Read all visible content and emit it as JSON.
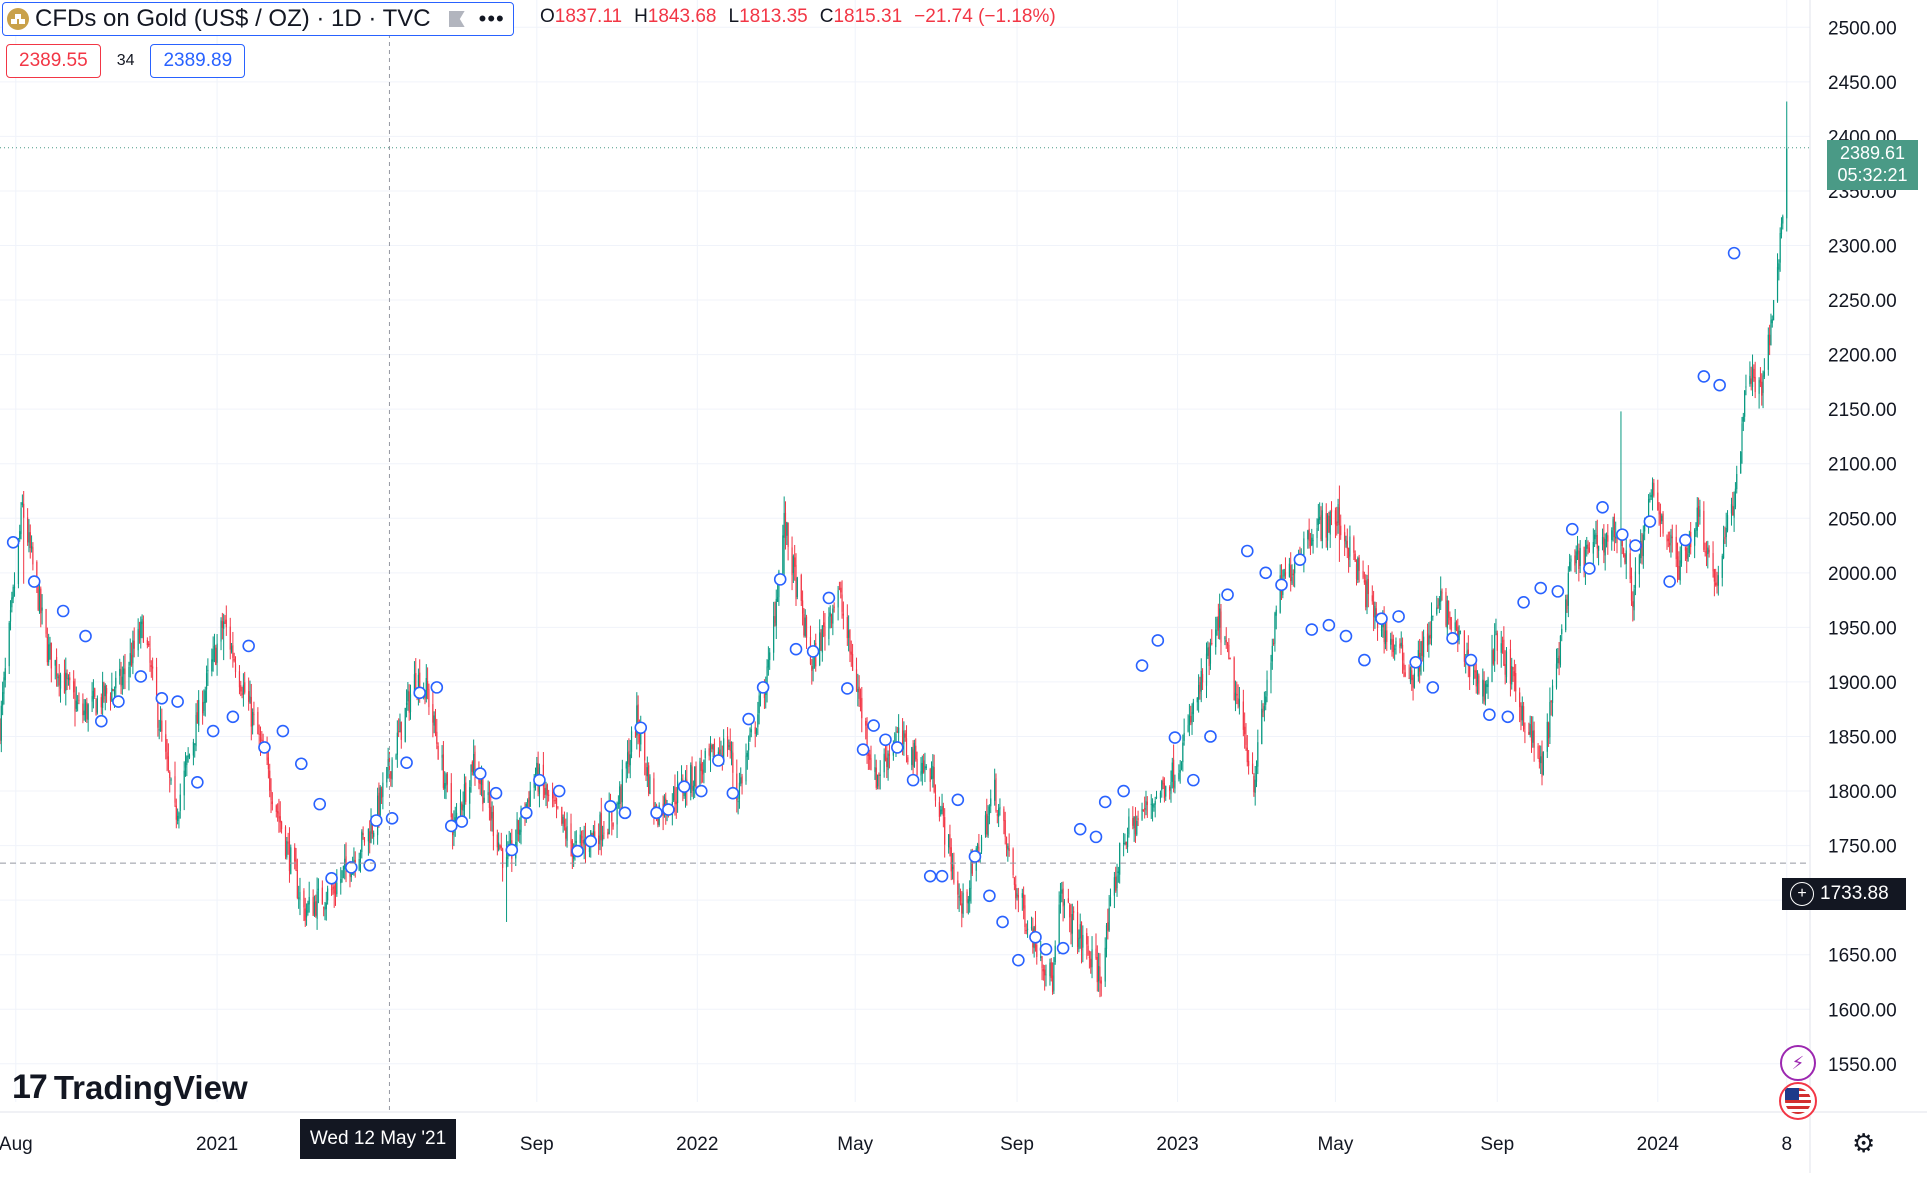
{
  "header": {
    "symbol_title": "CFDs on Gold (US$ / OZ) · 1D · TVC",
    "ohlc": {
      "o_label": "O",
      "o": "1837.11",
      "h_label": "H",
      "h": "1843.68",
      "l_label": "L",
      "l": "1813.35",
      "c_label": "C",
      "c": "1815.31",
      "change": "−21.74 (−1.18%)"
    },
    "icons": {
      "symbol": "gold-bars-icon",
      "flag": "flag-icon",
      "more": "more-dots-icon"
    }
  },
  "quote": {
    "sell": "2389.55",
    "spread": "34",
    "buy": "2389.89"
  },
  "crosshair": {
    "date_label": "Wed 12 May '21",
    "price_label": "1733.88",
    "price": 1733.88
  },
  "last_price": {
    "price": "2389.61",
    "countdown": "05:32:21",
    "value": 2389.61
  },
  "branding": {
    "logo_mark": "17",
    "logo_text": "TradingView"
  },
  "side_icons": {
    "lightning": "lightning-icon",
    "flag": "us-flag-icon",
    "settings": "gear-icon"
  },
  "colors": {
    "up": "#089981",
    "down": "#f23645",
    "last": "#4a9a86",
    "event": "#2962ff",
    "grid": "#f0f3fa"
  },
  "chart_data": {
    "type": "candlestick",
    "series_name": "CFDs on Gold (US$ / OZ)",
    "ylim": [
      1515,
      2525
    ],
    "y_ticks": [
      1550,
      1600,
      1650,
      1700,
      1750,
      1800,
      1850,
      1900,
      1950,
      2000,
      2050,
      2100,
      2150,
      2200,
      2250,
      2300,
      2350,
      2400,
      2450,
      2500
    ],
    "x_ticks": [
      {
        "date": "2020-08-01",
        "label": "Aug"
      },
      {
        "date": "2021-01-01",
        "label": "2021"
      },
      {
        "date": "2021-09-01",
        "label": "Sep"
      },
      {
        "date": "2022-01-01",
        "label": "2022"
      },
      {
        "date": "2022-05-01",
        "label": "May"
      },
      {
        "date": "2022-09-01",
        "label": "Sep"
      },
      {
        "date": "2023-01-01",
        "label": "2023"
      },
      {
        "date": "2023-05-01",
        "label": "May"
      },
      {
        "date": "2023-09-01",
        "label": "Sep"
      },
      {
        "date": "2024-01-01",
        "label": "2024"
      },
      {
        "date": "2024-04-08",
        "label": "8"
      }
    ],
    "xlim": [
      "2020-07-20",
      "2024-04-12"
    ],
    "trend": [
      [
        "2020-07-20",
        1860
      ],
      [
        "2020-08-06",
        2060
      ],
      [
        "2020-08-25",
        1930
      ],
      [
        "2020-09-20",
        1870
      ],
      [
        "2020-10-20",
        1900
      ],
      [
        "2020-11-06",
        1950
      ],
      [
        "2020-11-30",
        1777
      ],
      [
        "2020-12-20",
        1880
      ],
      [
        "2021-01-06",
        1955
      ],
      [
        "2021-02-01",
        1850
      ],
      [
        "2021-03-08",
        1690
      ],
      [
        "2021-03-31",
        1710
      ],
      [
        "2021-04-30",
        1770
      ],
      [
        "2021-06-01",
        1905
      ],
      [
        "2021-06-10",
        1890
      ],
      [
        "2021-06-30",
        1765
      ],
      [
        "2021-07-15",
        1830
      ],
      [
        "2021-08-09",
        1730
      ],
      [
        "2021-08-31",
        1815
      ],
      [
        "2021-09-30",
        1745
      ],
      [
        "2021-10-31",
        1780
      ],
      [
        "2021-11-16",
        1865
      ],
      [
        "2021-11-30",
        1780
      ],
      [
        "2021-12-31",
        1815
      ],
      [
        "2022-01-25",
        1845
      ],
      [
        "2022-01-31",
        1795
      ],
      [
        "2022-02-24",
        1910
      ],
      [
        "2022-03-08",
        2045
      ],
      [
        "2022-03-29",
        1915
      ],
      [
        "2022-04-18",
        1985
      ],
      [
        "2022-05-16",
        1810
      ],
      [
        "2022-06-01",
        1850
      ],
      [
        "2022-06-30",
        1810
      ],
      [
        "2022-07-21",
        1690
      ],
      [
        "2022-08-15",
        1800
      ],
      [
        "2022-09-01",
        1705
      ],
      [
        "2022-09-28",
        1625
      ],
      [
        "2022-10-04",
        1700
      ],
      [
        "2022-11-03",
        1630
      ],
      [
        "2022-11-20",
        1755
      ],
      [
        "2022-12-31",
        1820
      ],
      [
        "2023-02-02",
        1955
      ],
      [
        "2023-02-28",
        1810
      ],
      [
        "2023-03-20",
        1985
      ],
      [
        "2023-04-13",
        2040
      ],
      [
        "2023-05-03",
        2050
      ],
      [
        "2023-05-31",
        1960
      ],
      [
        "2023-06-29",
        1905
      ],
      [
        "2023-07-20",
        1975
      ],
      [
        "2023-08-21",
        1890
      ],
      [
        "2023-09-01",
        1940
      ],
      [
        "2023-10-05",
        1820
      ],
      [
        "2023-10-27",
        2005
      ],
      [
        "2023-11-30",
        2040
      ],
      [
        "2023-12-04",
        2030
      ],
      [
        "2023-12-13",
        1980
      ],
      [
        "2023-12-28",
        2075
      ],
      [
        "2024-01-17",
        2005
      ],
      [
        "2024-02-01",
        2055
      ],
      [
        "2024-02-14",
        1990
      ],
      [
        "2024-03-01",
        2080
      ],
      [
        "2024-03-08",
        2180
      ],
      [
        "2024-03-21",
        2170
      ],
      [
        "2024-03-28",
        2235
      ],
      [
        "2024-04-05",
        2330
      ],
      [
        "2024-04-08",
        2389.61
      ]
    ],
    "wick_spikes": [
      {
        "date": "2020-08-07",
        "high": 2075,
        "low": 1990
      },
      {
        "date": "2021-01-06",
        "high": 1960,
        "low": 1920
      },
      {
        "date": "2021-08-09",
        "high": 1760,
        "low": 1680
      },
      {
        "date": "2022-03-08",
        "high": 2070,
        "low": 1990
      },
      {
        "date": "2023-05-04",
        "high": 2080,
        "low": 2010
      },
      {
        "date": "2023-12-04",
        "high": 2148,
        "low": 2005
      },
      {
        "date": "2024-04-08",
        "high": 2432,
        "low": 2320
      }
    ],
    "event_markers": [
      [
        "2020-07-30",
        2028
      ],
      [
        "2020-08-15",
        1992
      ],
      [
        "2020-09-06",
        1965
      ],
      [
        "2020-09-23",
        1942
      ],
      [
        "2020-10-05",
        1864
      ],
      [
        "2020-10-18",
        1882
      ],
      [
        "2020-11-04",
        1905
      ],
      [
        "2020-11-20",
        1885
      ],
      [
        "2020-12-02",
        1882
      ],
      [
        "2020-12-17",
        1808
      ],
      [
        "2020-12-29",
        1855
      ],
      [
        "2021-01-13",
        1868
      ],
      [
        "2021-01-25",
        1933
      ],
      [
        "2021-02-06",
        1840
      ],
      [
        "2021-02-20",
        1855
      ],
      [
        "2021-03-06",
        1825
      ],
      [
        "2021-03-20",
        1788
      ],
      [
        "2021-03-29",
        1720
      ],
      [
        "2021-04-13",
        1730
      ],
      [
        "2021-04-27",
        1732
      ],
      [
        "2021-05-02",
        1773
      ],
      [
        "2021-05-14",
        1775
      ],
      [
        "2021-05-25",
        1826
      ],
      [
        "2021-06-04",
        1890
      ],
      [
        "2021-06-17",
        1895
      ],
      [
        "2021-06-28",
        1768
      ],
      [
        "2021-07-06",
        1772
      ],
      [
        "2021-07-20",
        1816
      ],
      [
        "2021-08-01",
        1798
      ],
      [
        "2021-08-13",
        1746
      ],
      [
        "2021-08-24",
        1780
      ],
      [
        "2021-09-03",
        1810
      ],
      [
        "2021-09-18",
        1800
      ],
      [
        "2021-10-02",
        1745
      ],
      [
        "2021-10-12",
        1754
      ],
      [
        "2021-10-27",
        1786
      ],
      [
        "2021-11-07",
        1780
      ],
      [
        "2021-11-19",
        1858
      ],
      [
        "2021-12-01",
        1780
      ],
      [
        "2021-12-10",
        1783
      ],
      [
        "2021-12-22",
        1804
      ],
      [
        "2022-01-04",
        1800
      ],
      [
        "2022-01-17",
        1828
      ],
      [
        "2022-01-28",
        1798
      ],
      [
        "2022-02-09",
        1866
      ],
      [
        "2022-02-20",
        1895
      ],
      [
        "2022-03-05",
        1994
      ],
      [
        "2022-03-17",
        1930
      ],
      [
        "2022-03-30",
        1928
      ],
      [
        "2022-04-11",
        1977
      ],
      [
        "2022-04-25",
        1894
      ],
      [
        "2022-05-07",
        1838
      ],
      [
        "2022-05-15",
        1860
      ],
      [
        "2022-05-24",
        1847
      ],
      [
        "2022-06-02",
        1840
      ],
      [
        "2022-06-14",
        1810
      ],
      [
        "2022-06-27",
        1722
      ],
      [
        "2022-07-06",
        1722
      ],
      [
        "2022-07-18",
        1792
      ],
      [
        "2022-07-31",
        1740
      ],
      [
        "2022-08-11",
        1704
      ],
      [
        "2022-08-21",
        1680
      ],
      [
        "2022-09-02",
        1645
      ],
      [
        "2022-09-15",
        1666
      ],
      [
        "2022-09-23",
        1655
      ],
      [
        "2022-10-06",
        1656
      ],
      [
        "2022-10-19",
        1765
      ],
      [
        "2022-10-31",
        1758
      ],
      [
        "2022-11-07",
        1790
      ],
      [
        "2022-11-21",
        1800
      ],
      [
        "2022-12-05",
        1915
      ],
      [
        "2022-12-17",
        1938
      ],
      [
        "2022-12-30",
        1849
      ],
      [
        "2023-01-13",
        1810
      ],
      [
        "2023-01-26",
        1850
      ],
      [
        "2023-02-08",
        1980
      ],
      [
        "2023-02-23",
        2020
      ],
      [
        "2023-03-09",
        2000
      ],
      [
        "2023-03-21",
        1989
      ],
      [
        "2023-04-04",
        2012
      ],
      [
        "2023-04-13",
        1948
      ],
      [
        "2023-04-26",
        1952
      ],
      [
        "2023-05-09",
        1942
      ],
      [
        "2023-05-23",
        1920
      ],
      [
        "2023-06-05",
        1958
      ],
      [
        "2023-06-18",
        1960
      ],
      [
        "2023-07-01",
        1918
      ],
      [
        "2023-07-14",
        1895
      ],
      [
        "2023-07-29",
        1940
      ],
      [
        "2023-08-12",
        1920
      ],
      [
        "2023-08-26",
        1870
      ],
      [
        "2023-09-09",
        1868
      ],
      [
        "2023-09-21",
        1973
      ],
      [
        "2023-10-04",
        1986
      ],
      [
        "2023-10-17",
        1983
      ],
      [
        "2023-10-28",
        2040
      ],
      [
        "2023-11-10",
        2004
      ],
      [
        "2023-11-20",
        2060
      ],
      [
        "2023-12-05",
        2035
      ],
      [
        "2023-12-15",
        2025
      ],
      [
        "2023-12-26",
        2047
      ],
      [
        "2024-01-10",
        1992
      ],
      [
        "2024-01-22",
        2030
      ],
      [
        "2024-02-05",
        2180
      ],
      [
        "2024-02-17",
        2172
      ],
      [
        "2024-02-28",
        2293
      ]
    ]
  }
}
